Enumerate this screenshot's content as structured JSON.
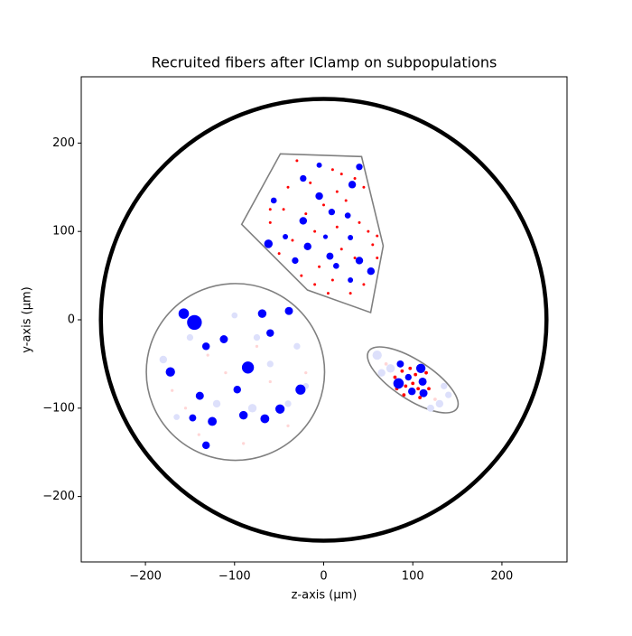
{
  "chart_data": {
    "type": "scatter",
    "title": "Recruited fibers after IClamp on subpopulations",
    "x_label": "z-axis (µm)",
    "y_label": "y-axis (µm)",
    "xlim": [
      -272,
      273
    ],
    "ylim": [
      -274,
      275
    ],
    "xticks": [
      {
        "value": -200,
        "label": "−200"
      },
      {
        "value": -100,
        "label": "−100"
      },
      0,
      100,
      200
    ],
    "yticks": [
      {
        "value": -200,
        "label": "−200"
      },
      {
        "value": -100,
        "label": "−100"
      },
      0,
      100,
      200
    ],
    "outline": {
      "center": [
        0,
        0
      ],
      "radius": 250,
      "color": "black"
    },
    "fascicles": [
      {
        "kind": "polygon",
        "color": "gray",
        "points": [
          [
            -48.6,
            187.8
          ],
          [
            42.5,
            184.7
          ],
          [
            66.8,
            83.7
          ],
          [
            52.7,
            8.2
          ],
          [
            -18.2,
            33.7
          ],
          [
            -92,
            108
          ]
        ]
      },
      {
        "kind": "circle",
        "color": "gray",
        "center": [
          -99,
          -59
        ],
        "radius": 100
      },
      {
        "kind": "ellipse",
        "color": "gray",
        "center": [
          100,
          -68
        ],
        "width": 118,
        "height": 44,
        "angle": -33
      }
    ],
    "series": [
      {
        "color": "#dde0fb",
        "x": [
          -180,
          -150,
          -80,
          -40,
          -30,
          -120,
          -100,
          -60,
          60,
          75,
          130,
          140,
          65,
          135,
          -165,
          -75,
          -20,
          120
        ],
        "values": [
          -45,
          -20,
          -100,
          -95,
          -30,
          -95,
          5,
          -50,
          -40,
          -55,
          -95,
          -85,
          -60,
          -75,
          -110,
          -20,
          -75,
          -100
        ],
        "sizes": [
          40,
          30,
          50,
          30,
          30,
          40,
          25,
          30,
          60,
          50,
          40,
          30,
          40,
          30,
          25,
          30,
          25,
          35
        ]
      },
      {
        "color": "#ffd6d6",
        "x": [
          -170,
          -110,
          -60,
          -140,
          -20,
          -90,
          125,
          70,
          -130,
          -75,
          -40,
          -155
        ],
        "values": [
          -80,
          -60,
          -70,
          -130,
          -60,
          -140,
          -90,
          -50,
          -40,
          -30,
          -120,
          -100
        ],
        "sizes": [
          6,
          6,
          6,
          6,
          6,
          6,
          8,
          8,
          6,
          6,
          6,
          6
        ]
      },
      {
        "color": "red",
        "x": [
          10,
          20,
          -30,
          45,
          -40,
          -15,
          15,
          -45,
          0,
          25,
          -60,
          -20,
          40,
          -10,
          15,
          50,
          -35,
          55,
          -50,
          20,
          -5,
          35,
          60,
          -25,
          10,
          30,
          45,
          5,
          -10,
          60,
          -60,
          35,
          88,
          92,
          97,
          103,
          106,
          80,
          115,
          90,
          100,
          108,
          82,
          118
        ],
        "values": [
          170,
          165,
          180,
          150,
          150,
          155,
          145,
          125,
          130,
          135,
          110,
          120,
          110,
          100,
          105,
          100,
          90,
          85,
          75,
          80,
          60,
          70,
          70,
          50,
          45,
          30,
          40,
          30,
          40,
          95,
          125,
          160,
          -58,
          -75,
          -55,
          -62,
          -78,
          -65,
          -60,
          -85,
          -72,
          -88,
          -78,
          -78
        ],
        "sizes": [
          5,
          5,
          5,
          5,
          5,
          5,
          5,
          5,
          5,
          5,
          5,
          5,
          5,
          5,
          5,
          5,
          5,
          5,
          5,
          5,
          5,
          5,
          5,
          5,
          5,
          5,
          5,
          5,
          5,
          5,
          5,
          5,
          8,
          8,
          8,
          8,
          8,
          8,
          8,
          8,
          8,
          8,
          8,
          8
        ]
      },
      {
        "color": "blue",
        "x": [
          -5,
          40,
          -23,
          32,
          -5,
          -56,
          9,
          27,
          -23,
          -62,
          -18,
          7,
          -32,
          14,
          40,
          53,
          30,
          -43,
          2,
          30,
          -145,
          -157,
          -69,
          -39,
          -60,
          -112,
          -132,
          -85,
          -172,
          -26,
          -97,
          -139,
          -49,
          -90,
          -66,
          -147,
          -125,
          -132,
          84,
          109,
          112,
          86,
          111,
          99,
          95
        ],
        "values": [
          175,
          173,
          160,
          153,
          140,
          135,
          122,
          118,
          112,
          86,
          83,
          72,
          67,
          61,
          67,
          55,
          45,
          94,
          94,
          93,
          -3,
          7,
          7,
          10,
          -15,
          -22,
          -30,
          -54,
          -59,
          -79,
          -79,
          -86,
          -101,
          -108,
          -112,
          -111,
          -115,
          -142,
          -72,
          -55,
          -83,
          -50,
          -70,
          -81,
          -65
        ],
        "sizes": [
          20,
          30,
          30,
          40,
          40,
          25,
          30,
          25,
          40,
          50,
          40,
          35,
          30,
          25,
          40,
          40,
          20,
          20,
          15,
          20,
          150,
          75,
          50,
          45,
          40,
          45,
          40,
          100,
          60,
          70,
          40,
          45,
          60,
          50,
          55,
          35,
          55,
          40,
          75,
          60,
          45,
          35,
          45,
          40,
          30
        ]
      }
    ]
  }
}
